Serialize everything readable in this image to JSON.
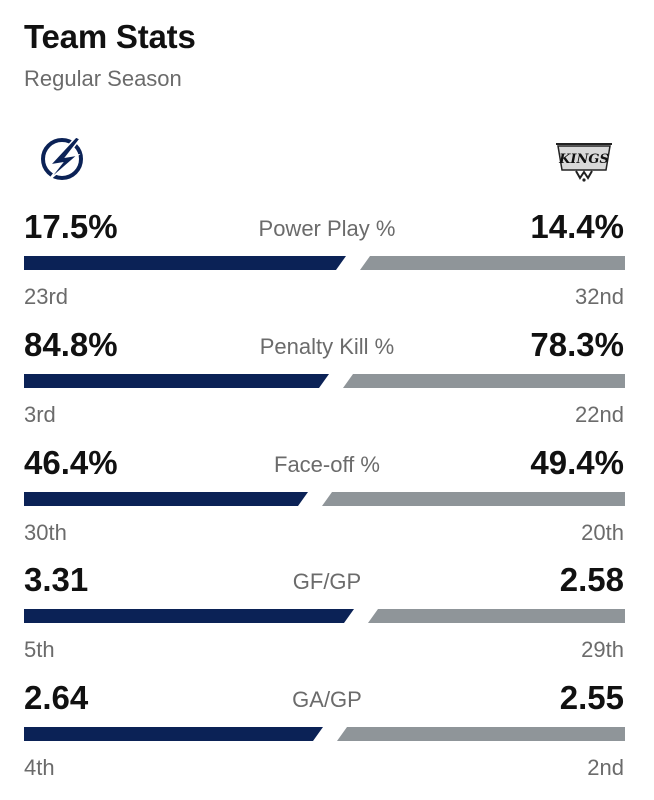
{
  "header": {
    "title": "Team Stats",
    "subtitle": "Regular Season"
  },
  "teams": {
    "left": {
      "logo": "lightning-bolt-logo",
      "color": "#0b2256"
    },
    "right": {
      "logo": "kings-crown-logo",
      "color": "#8f9599",
      "logo_text": "KINGS"
    }
  },
  "stats": [
    {
      "label": "Power Play %",
      "left_value": "17.5%",
      "right_value": "14.4%",
      "left_rank": "23rd",
      "right_rank": "32nd",
      "left_share": 0.549,
      "right_share": 0.451
    },
    {
      "label": "Penalty Kill %",
      "left_value": "84.8%",
      "right_value": "78.3%",
      "left_rank": "3rd",
      "right_rank": "22nd",
      "left_share": 0.52,
      "right_share": 0.48
    },
    {
      "label": "Face-off %",
      "left_value": "46.4%",
      "right_value": "49.4%",
      "left_rank": "30th",
      "right_rank": "20th",
      "left_share": 0.484,
      "right_share": 0.516
    },
    {
      "label": "GF/GP",
      "left_value": "3.31",
      "right_value": "2.58",
      "left_rank": "5th",
      "right_rank": "29th",
      "left_share": 0.562,
      "right_share": 0.438
    },
    {
      "label": "GA/GP",
      "left_value": "2.64",
      "right_value": "2.55",
      "left_rank": "4th",
      "right_rank": "2nd",
      "left_share": 0.509,
      "right_share": 0.491
    }
  ]
}
